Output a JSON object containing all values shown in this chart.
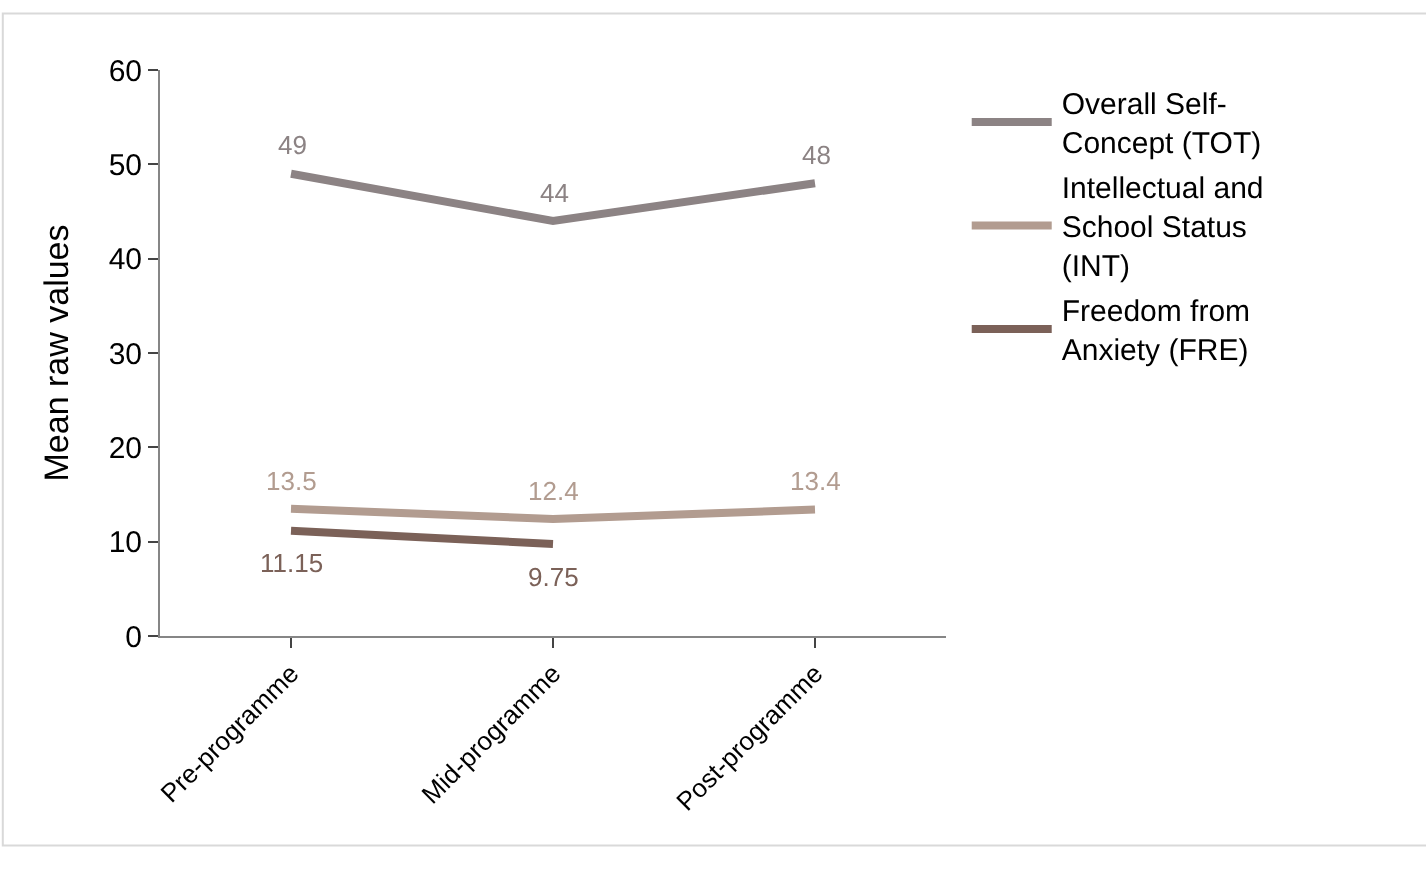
{
  "chart_data": {
    "type": "line",
    "ylabel": "Mean raw values",
    "categories": [
      "Pre-programme",
      "Mid-programme",
      "Post-programme"
    ],
    "series": [
      {
        "name": "Overall Self-Concept (TOT)",
        "color": "#8c8384",
        "values": [
          49,
          44,
          48
        ]
      },
      {
        "name": "Intellectual and School Status (INT)",
        "color": "#b29c90",
        "values": [
          13.5,
          12.4,
          13.4
        ]
      },
      {
        "name": "Freedom from Anxiety (FRE)",
        "color": "#7b6158",
        "values": [
          11.15,
          9.75,
          null
        ]
      }
    ],
    "ylim": [
      0,
      60
    ],
    "yticks": [
      0,
      10,
      20,
      30,
      40,
      50,
      60
    ],
    "legend": "right",
    "data_labels": true,
    "marker": "none",
    "line_style": "solid"
  }
}
